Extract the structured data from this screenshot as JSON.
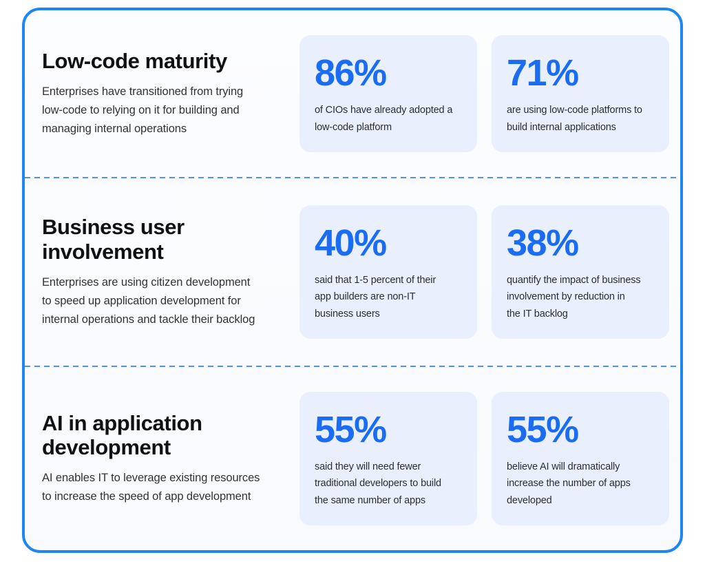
{
  "theme": {
    "panel_border_blue": "#1e86f0",
    "accent_blue": "#1a6cf2",
    "card_background": "#e9effc",
    "dashed_divider_blue": "#4f8ef5",
    "heading_color": "#101114",
    "body_text_color": "#2f3238"
  },
  "sections": [
    {
      "title": "Low-code maturity",
      "description": "Enterprises have transitioned from trying\nlow-code to relying on it for building and\nmanaging internal operations",
      "stats": [
        {
          "value": "86%",
          "label": "of CIOs have already adopted a\nlow-code platform"
        },
        {
          "value": "71%",
          "label": "are using low-code platforms to\nbuild internal applications"
        }
      ]
    },
    {
      "title": "Business user\ninvolvement",
      "description": "Enterprises are using citizen development\nto speed up application development for\ninternal operations and tackle their backlog",
      "stats": [
        {
          "value": "40%",
          "label": "said that 1-5 percent of their\napp builders are non-IT\nbusiness users"
        },
        {
          "value": "38%",
          "label": "quantify the impact of business\ninvolvement by reduction in\nthe IT backlog"
        }
      ]
    },
    {
      "title": "AI in application\ndevelopment",
      "description": "AI enables IT to leverage existing resources\nto increase the speed of app development",
      "stats": [
        {
          "value": "55%",
          "label": "said they will need fewer\ntraditional developers to build\nthe same number of apps"
        },
        {
          "value": "55%",
          "label": "believe AI will dramatically\nincrease the number of apps\ndeveloped"
        }
      ]
    }
  ]
}
